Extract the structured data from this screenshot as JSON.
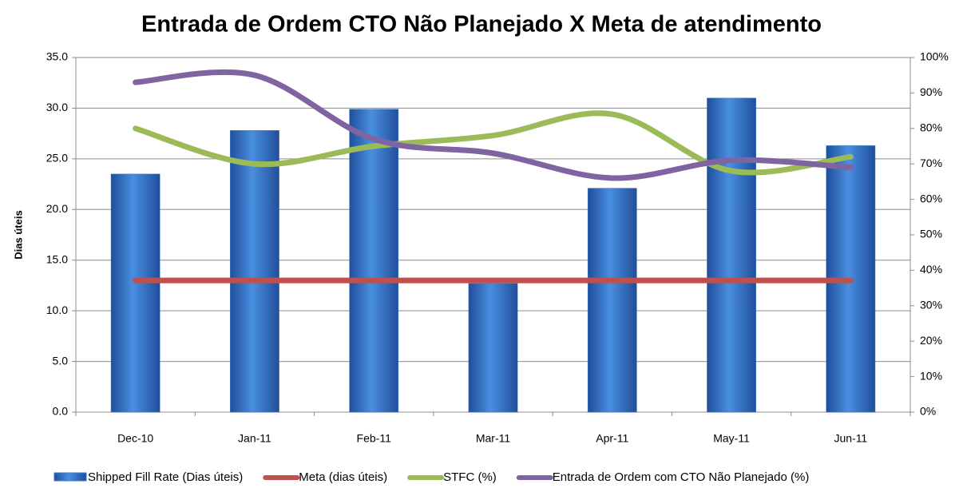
{
  "chart_data": {
    "type": "combo",
    "title": "Entrada de Ordem CTO Não Planejado X Meta de atendimento",
    "y_label": "Dias úteis",
    "categories": [
      "Dec-10",
      "Jan-11",
      "Feb-11",
      "Mar-11",
      "Apr-11",
      "May-11",
      "Jun-11"
    ],
    "series": [
      {
        "name": "Shipped Fill Rate (Dias úteis)",
        "type": "bar",
        "color": "#3a78c9",
        "axis": "y",
        "values": [
          23.5,
          27.8,
          29.9,
          12.7,
          22.1,
          31.0,
          26.3
        ]
      },
      {
        "name": "Meta (dias úteis)",
        "type": "line",
        "color": "#c0504d",
        "axis": "y",
        "values": [
          13,
          13,
          13,
          13,
          13,
          13,
          13
        ]
      },
      {
        "name": "STFC (%)",
        "type": "line",
        "color": "#9bbb59",
        "axis": "y2",
        "values": [
          80,
          70,
          75,
          78,
          84,
          68,
          72
        ]
      },
      {
        "name": "Entrada de Ordem com CTO Não Planejado (%)",
        "type": "line",
        "color": "#8064a2",
        "axis": "y2",
        "values": [
          93,
          95,
          77,
          73,
          66,
          71,
          69
        ]
      }
    ],
    "ylim": [
      0,
      35
    ],
    "yticks": [
      {
        "value": 0,
        "label": "0.0"
      },
      {
        "value": 5,
        "label": "5.0"
      },
      {
        "value": 10,
        "label": "10.0"
      },
      {
        "value": 15,
        "label": "15.0"
      },
      {
        "value": 20,
        "label": "20.0"
      },
      {
        "value": 25,
        "label": "25.0"
      },
      {
        "value": 30,
        "label": "30.0"
      },
      {
        "value": 35,
        "label": "35.0"
      }
    ],
    "y2lim": [
      0,
      100
    ],
    "y2ticks": [
      {
        "value": 0,
        "label": "0%"
      },
      {
        "value": 10,
        "label": "10%"
      },
      {
        "value": 20,
        "label": "20%"
      },
      {
        "value": 30,
        "label": "30%"
      },
      {
        "value": 40,
        "label": "40%"
      },
      {
        "value": 50,
        "label": "50%"
      },
      {
        "value": 60,
        "label": "60%"
      },
      {
        "value": 70,
        "label": "70%"
      },
      {
        "value": 80,
        "label": "80%"
      },
      {
        "value": 90,
        "label": "90%"
      },
      {
        "value": 100,
        "label": "100%"
      }
    ],
    "grid": true,
    "legend": "bottom"
  }
}
